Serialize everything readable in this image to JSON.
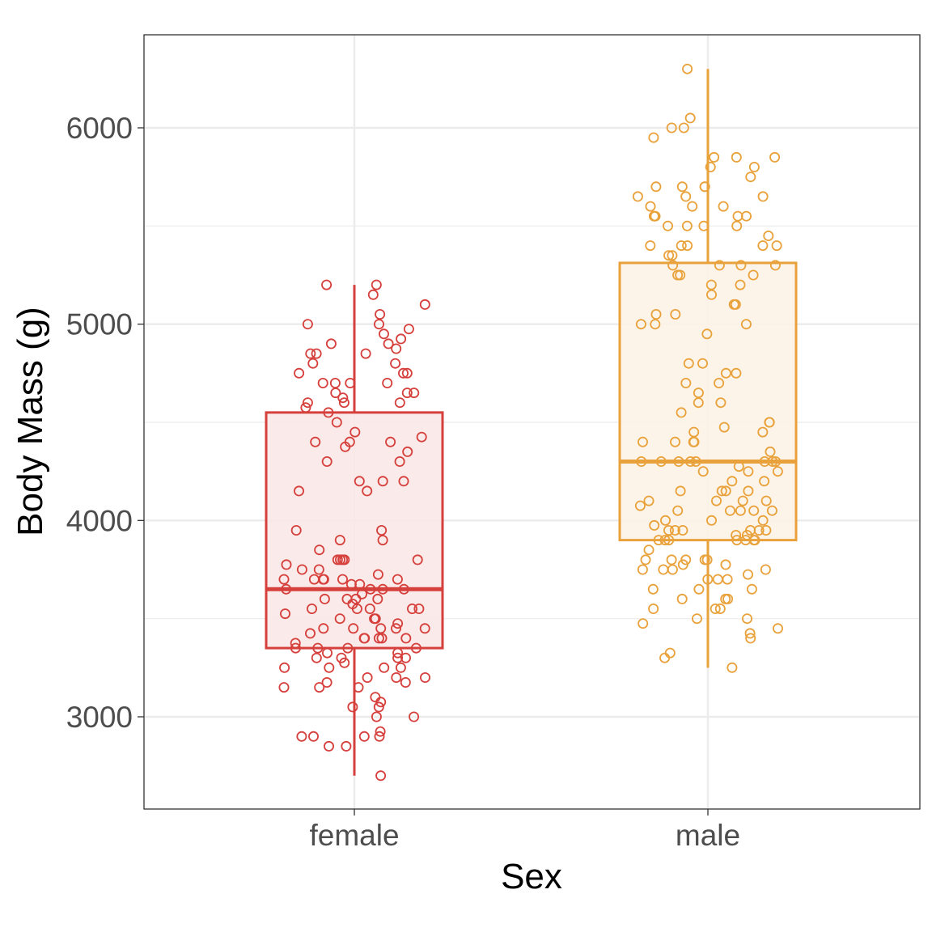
{
  "chart_data": {
    "type": "boxplot-jitter",
    "title": "",
    "xlabel": "Sex",
    "ylabel": "Body Mass (g)",
    "categories": [
      "female",
      "male"
    ],
    "ylim": [
      2520,
      6450
    ],
    "yticks": [
      3000,
      4000,
      5000,
      6000
    ],
    "ytick_labels": [
      "3000",
      "4000",
      "5000",
      "6000"
    ],
    "minor_gridlines": [
      3500,
      4500,
      5500
    ],
    "grid": true,
    "legend": "none",
    "theme": "bw",
    "points_note": "Approximate, partial subset of the plotted observations, read by eye from a dense jitter plot. The original shows roughly 165 female and 168 male points; individual values are estimates to about +/-25 g.",
    "series": [
      {
        "name": "female",
        "color": "#d6403c",
        "fill": "#f9e8e7",
        "box": {
          "q1": 3350,
          "median": 3650,
          "q3": 4550,
          "whisker_low": 2700,
          "whisker_high": 5200
        },
        "points_approx": [
          5200,
          5200,
          5150,
          5100,
          5050,
          5000,
          5000,
          4975,
          4950,
          4925,
          4900,
          4900,
          4875,
          4850,
          4850,
          4850,
          4800,
          4800,
          4750,
          4750,
          4750,
          4700,
          4700,
          4700,
          4700,
          4650,
          4650,
          4650,
          4625,
          4600,
          4600,
          4600,
          4575,
          4550,
          4500,
          4450,
          4425,
          4400,
          4400,
          4400,
          4375,
          4350,
          4300,
          4300,
          4200,
          4200,
          4200,
          4150,
          4150,
          3950,
          3950,
          3900,
          3900,
          3850,
          3800,
          3800,
          3800,
          3800,
          3800,
          3775,
          3750,
          3750,
          3725,
          3700,
          3700,
          3700,
          3700,
          3700,
          3700,
          3675,
          3675,
          3650,
          3650,
          3650,
          3650,
          3625,
          3600,
          3600,
          3600,
          3600,
          3575,
          3550,
          3550,
          3550,
          3550,
          3550,
          3525,
          3500,
          3500,
          3500,
          3475,
          3450,
          3450,
          3450,
          3450,
          3450,
          3425,
          3400,
          3400,
          3400,
          3400,
          3400,
          3375,
          3350,
          3350,
          3350,
          3350,
          3325,
          3325,
          3300,
          3300,
          3300,
          3300,
          3275,
          3250,
          3250,
          3250,
          3250,
          3200,
          3200,
          3200,
          3175,
          3175,
          3150,
          3150,
          3150,
          3100,
          3075,
          3050,
          3050,
          3000,
          3000,
          2925,
          2900,
          2900,
          2900,
          2900,
          2850,
          2850,
          2700
        ]
      },
      {
        "name": "male",
        "color": "#e9a23b",
        "fill": "#fdf3e7",
        "box": {
          "q1": 3900,
          "median": 4300,
          "q3": 5312,
          "whisker_low": 3250,
          "whisker_high": 6300
        },
        "points_approx": [
          6300,
          6050,
          6000,
          6000,
          5950,
          5850,
          5850,
          5850,
          5800,
          5800,
          5750,
          5700,
          5700,
          5700,
          5700,
          5650,
          5650,
          5650,
          5600,
          5600,
          5600,
          5550,
          5550,
          5550,
          5550,
          5550,
          5500,
          5500,
          5500,
          5500,
          5450,
          5400,
          5400,
          5400,
          5400,
          5400,
          5350,
          5350,
          5300,
          5300,
          5300,
          5300,
          5250,
          5250,
          5250,
          5200,
          5200,
          5150,
          5100,
          5100,
          5050,
          5050,
          5000,
          5000,
          5000,
          4950,
          4800,
          4800,
          4750,
          4750,
          4700,
          4700,
          4650,
          4600,
          4600,
          4550,
          4500,
          4500,
          4475,
          4450,
          4450,
          4400,
          4400,
          4400,
          4400,
          4350,
          4300,
          4300,
          4300,
          4300,
          4300,
          4300,
          4300,
          4300,
          4275,
          4250,
          4250,
          4250,
          4200,
          4200,
          4150,
          4150,
          4150,
          4150,
          4100,
          4100,
          4100,
          4100,
          4075,
          4050,
          4050,
          4050,
          4050,
          4050,
          4000,
          4000,
          4000,
          3975,
          3950,
          3950,
          3950,
          3950,
          3950,
          3950,
          3925,
          3925,
          3900,
          3900,
          3900,
          3900,
          3900,
          3900,
          3900,
          3850,
          3800,
          3800,
          3800,
          3800,
          3800,
          3775,
          3775,
          3750,
          3750,
          3750,
          3750,
          3725,
          3700,
          3700,
          3700,
          3650,
          3650,
          3650,
          3600,
          3600,
          3600,
          3550,
          3550,
          3550,
          3500,
          3500,
          3475,
          3450,
          3425,
          3400,
          3325,
          3300,
          3250
        ]
      }
    ]
  }
}
